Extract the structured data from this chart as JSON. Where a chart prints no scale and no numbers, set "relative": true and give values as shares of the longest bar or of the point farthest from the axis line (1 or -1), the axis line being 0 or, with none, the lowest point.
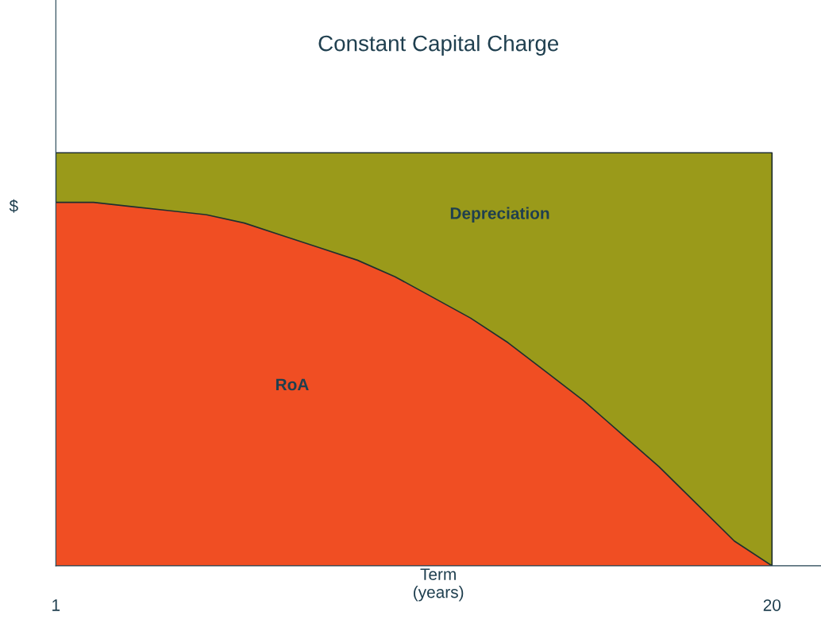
{
  "chart_data": {
    "type": "area",
    "title": "Constant Capital Charge",
    "xlabel": "Term\n(years)",
    "ylabel": "$",
    "x": [
      1,
      2,
      3,
      4,
      5,
      6,
      7,
      8,
      9,
      10,
      11,
      12,
      13,
      14,
      15,
      16,
      17,
      18,
      19,
      20
    ],
    "xlim": [
      1,
      21.3
    ],
    "xticks": [
      1,
      20
    ],
    "relative": true,
    "stacked": true,
    "legend": false,
    "grid": false,
    "series": [
      {
        "name": "RoA",
        "color": "#f04e23",
        "values": [
          0.88,
          0.88,
          0.87,
          0.86,
          0.85,
          0.83,
          0.8,
          0.77,
          0.74,
          0.7,
          0.65,
          0.6,
          0.54,
          0.47,
          0.4,
          0.32,
          0.24,
          0.15,
          0.06,
          0
        ]
      },
      {
        "name": "Depreciation",
        "color": "#9a9a1a",
        "values": [
          0.12,
          0.12,
          0.13,
          0.14,
          0.15,
          0.17,
          0.2,
          0.23,
          0.26,
          0.3,
          0.35,
          0.4,
          0.46,
          0.53,
          0.6,
          0.68,
          0.76,
          0.85,
          0.94,
          1
        ]
      }
    ]
  }
}
